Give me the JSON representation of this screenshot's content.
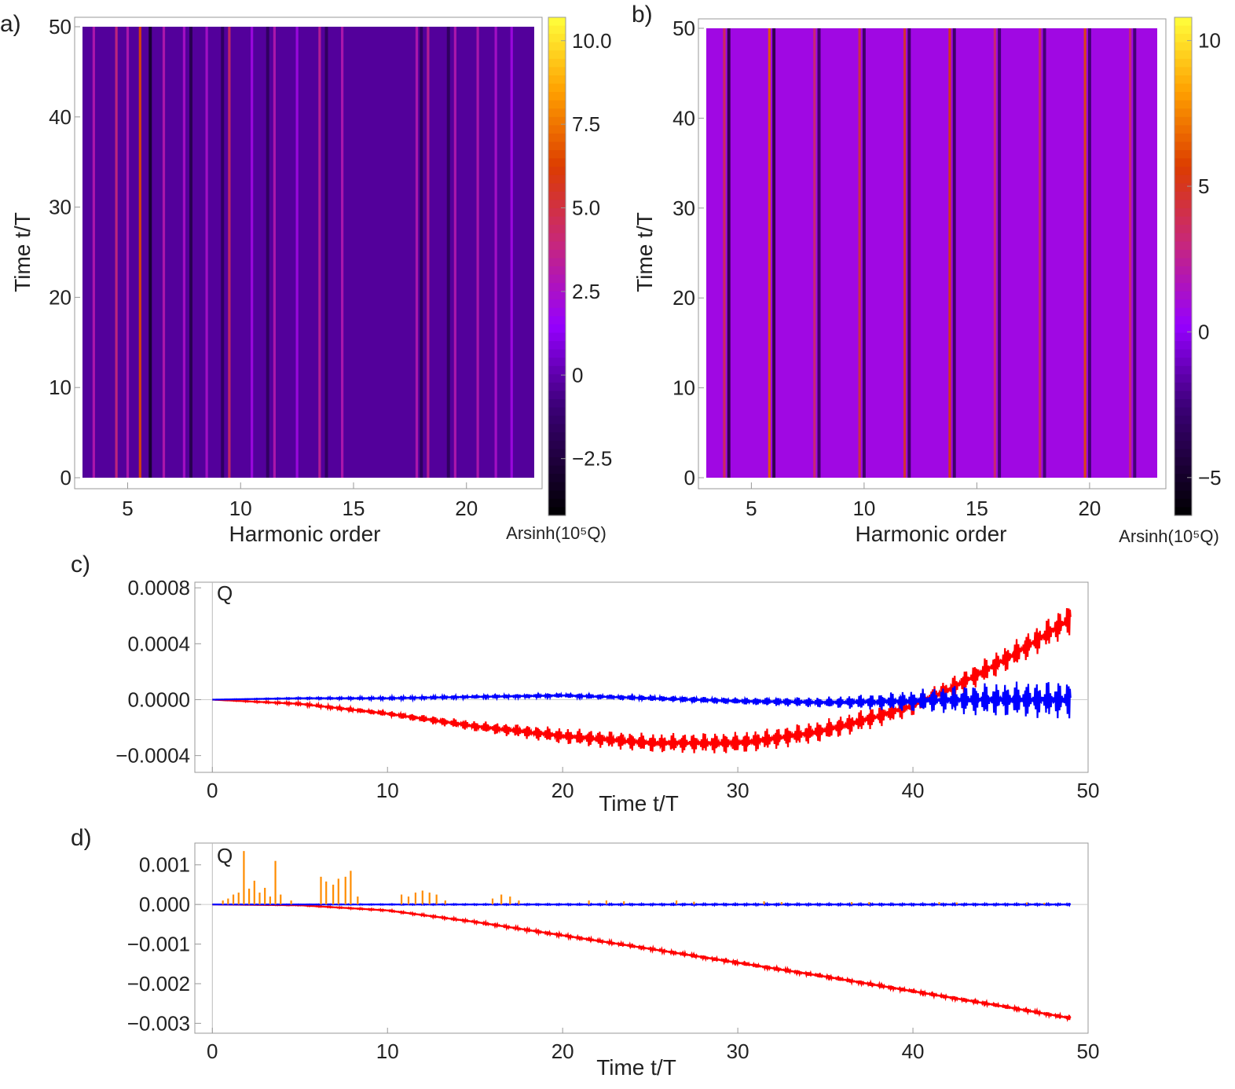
{
  "chart_data": [
    {
      "id": "a",
      "type": "heatmap",
      "panel_label": "a)",
      "xlabel": "Harmonic order",
      "ylabel": "Time  t/T",
      "x_range": [
        3,
        23
      ],
      "y_range": [
        0,
        50
      ],
      "x_ticks": [
        5,
        10,
        15,
        20
      ],
      "y_ticks": [
        0,
        10,
        20,
        30,
        40,
        50
      ],
      "colorbar_label": "Arsinh(10⁵Q)",
      "colorbar_range": [
        -4.2,
        10.7
      ],
      "colorbar_ticks": [
        -2.5,
        0,
        2.5,
        5.0,
        7.5,
        10.0
      ],
      "colorbar_tick_labels": [
        "−2.5",
        "0",
        "2.5",
        "5.0",
        "7.5",
        "10.0"
      ],
      "background_value": -0.3,
      "bright_lines_harmonic": [
        3.5,
        4.5,
        5.0,
        5.55,
        6.6,
        7.5,
        8.5,
        9.5,
        10.5,
        11.5,
        12.5,
        13.5,
        14.5,
        17.8,
        18.3,
        19.5,
        20.5,
        21.3,
        22.0
      ],
      "bright_lines_value": [
        3.0,
        4.0,
        3.0,
        6.5,
        3.0,
        2.5,
        2.5,
        4.5,
        2.0,
        3.0,
        2.0,
        3.5,
        3.0,
        3.0,
        3.5,
        3.0,
        3.0,
        2.5,
        2.0
      ],
      "dark_lines_harmonic": [
        6.0,
        7.8,
        9.2,
        11.2,
        13.8,
        18.0,
        19.2
      ],
      "dark_lines_value": [
        -3.5,
        -2.5,
        -2.0,
        -2.0,
        -2.0,
        -2.0,
        -2.0
      ]
    },
    {
      "id": "b",
      "type": "heatmap",
      "panel_label": "b)",
      "xlabel": "Harmonic order",
      "ylabel": "Time  t/T",
      "x_range": [
        3,
        23
      ],
      "y_range": [
        0,
        50
      ],
      "x_ticks": [
        5,
        10,
        15,
        20
      ],
      "y_ticks": [
        0,
        10,
        20,
        30,
        40,
        50
      ],
      "colorbar_label": "Arsinh(10⁵Q)",
      "colorbar_range": [
        -6.3,
        10.8
      ],
      "colorbar_ticks": [
        -5,
        0,
        5,
        10
      ],
      "colorbar_tick_labels": [
        "−5",
        "0",
        "5",
        "10"
      ],
      "background_value": 0.8,
      "bright_lines_harmonic": [
        3.8,
        5.8,
        7.8,
        9.8,
        11.8,
        13.8,
        15.8,
        17.8,
        19.8,
        21.8
      ],
      "bright_lines_value": [
        4.0,
        6.5,
        3.5,
        4.5,
        5.0,
        5.5,
        3.5,
        4.0,
        6.0,
        3.5
      ],
      "dark_lines_harmonic": [
        4.0,
        6.0,
        8.0,
        10.0,
        12.0,
        14.0,
        16.0,
        18.0,
        20.0,
        22.0
      ],
      "dark_lines_value": [
        -5.0,
        -5.0,
        -4.0,
        -4.0,
        -4.0,
        -4.0,
        -3.5,
        -3.5,
        -3.5,
        -3.5
      ]
    },
    {
      "id": "c",
      "type": "line",
      "panel_label": "c)",
      "xlabel": "Time  t/T",
      "ylabel": "Q",
      "xlim": [
        -1,
        50
      ],
      "ylim": [
        -0.00052,
        0.00084
      ],
      "x_ticks": [
        0,
        10,
        20,
        30,
        40,
        50
      ],
      "y_ticks": [
        -0.0004,
        0.0,
        0.0004,
        0.0008
      ],
      "y_tick_labels": [
        "−0.0004",
        "0.0000",
        "0.0004",
        "0.0008"
      ],
      "series": [
        {
          "name": "red",
          "color": "#ff0000",
          "x": [
            0,
            5,
            10,
            15,
            20,
            25,
            30,
            32,
            35,
            38,
            40,
            42,
            44,
            46,
            48,
            49
          ],
          "mean": [
            0,
            -3e-05,
            -0.0001,
            -0.00019,
            -0.00026,
            -0.00031,
            -0.00031,
            -0.00028,
            -0.00022,
            -0.00012,
            -4e-05,
            7e-05,
            0.0002,
            0.00034,
            0.0005,
            0.00058
          ],
          "amp": [
            0,
            1e-05,
            2e-05,
            4e-05,
            6e-05,
            7e-05,
            8e-05,
            8e-05,
            8e-05,
            8e-05,
            8e-05,
            8e-05,
            9e-05,
            0.0001,
            0.00011,
            0.00012
          ]
        },
        {
          "name": "blue",
          "color": "#0000ff",
          "x": [
            0,
            5,
            10,
            15,
            20,
            25,
            30,
            35,
            38,
            40,
            42,
            44,
            46,
            48,
            49
          ],
          "mean": [
            0,
            1e-05,
            1e-05,
            2e-05,
            3e-05,
            1e-05,
            -1e-05,
            -2e-05,
            -1.5e-05,
            -1e-05,
            0,
            0,
            0,
            0,
            0
          ],
          "amp": [
            0,
            5e-06,
            1e-05,
            1.3e-05,
            1.6e-05,
            2e-05,
            2.5e-05,
            4e-05,
            6e-05,
            8e-05,
            0.0001,
            0.00012,
            0.00013,
            0.00014,
            0.00014
          ]
        }
      ]
    },
    {
      "id": "d",
      "type": "line",
      "panel_label": "d)",
      "xlabel": "Time  t/T",
      "ylabel": "Q",
      "xlim": [
        -1,
        50
      ],
      "ylim": [
        -0.00325,
        0.00155
      ],
      "x_ticks": [
        0,
        10,
        20,
        30,
        40,
        50
      ],
      "y_ticks": [
        -0.003,
        -0.002,
        -0.001,
        0.0,
        0.001
      ],
      "y_tick_labels": [
        "−0.003",
        "−0.002",
        "−0.001",
        "0.000",
        "0.001"
      ],
      "series": [
        {
          "name": "red",
          "color": "#ff0000",
          "x": [
            0,
            5,
            10,
            15,
            20,
            25,
            30,
            35,
            40,
            45,
            49
          ],
          "mean": [
            0,
            -2e-05,
            -0.00015,
            -0.00044,
            -0.00078,
            -0.00112,
            -0.00147,
            -0.00182,
            -0.00219,
            -0.00256,
            -0.00287
          ],
          "amp": [
            0,
            1e-05,
            2e-05,
            3e-05,
            4e-05,
            4e-05,
            5e-05,
            5e-05,
            5e-05,
            5e-05,
            5e-05
          ]
        },
        {
          "name": "blue",
          "color": "#0000ff",
          "x": [
            0,
            10,
            20,
            30,
            40,
            49
          ],
          "mean": [
            0,
            0,
            0,
            0,
            0,
            0
          ],
          "amp": [
            0,
            1e-05,
            1.5e-05,
            2e-05,
            2e-05,
            2e-05
          ]
        },
        {
          "name": "orange",
          "color": "#ff8c00",
          "style": "spikes",
          "x": [
            0.6,
            0.9,
            1.2,
            1.5,
            1.8,
            2.1,
            2.4,
            2.7,
            3.0,
            3.3,
            3.6,
            3.9,
            4.5,
            6.2,
            6.5,
            6.9,
            7.2,
            7.6,
            7.9,
            8.3,
            10.8,
            11.2,
            11.6,
            12.0,
            12.4,
            12.8,
            13.3,
            16.0,
            16.5,
            17.0,
            17.5,
            21.5,
            22.5,
            23.5,
            26.5,
            27.5,
            31.5,
            32.5,
            36.5,
            37.5,
            41.5,
            42.5,
            46.5,
            47.5
          ],
          "y": [
            0.0001,
            0.00015,
            0.00025,
            0.0003,
            0.00135,
            0.0004,
            0.0006,
            0.0003,
            0.00042,
            0.0002,
            0.0011,
            0.00025,
            0.0001,
            0.0007,
            0.00058,
            0.0005,
            0.00065,
            0.0007,
            0.00085,
            0.0002,
            0.00025,
            0.0002,
            0.0003,
            0.00035,
            0.0003,
            0.00025,
            0.0001,
            0.00015,
            0.00025,
            0.0002,
            0.0001,
            0.0001,
            0.0001,
            8e-05,
            0.0001,
            7e-05,
            8e-05,
            6e-05,
            6e-05,
            6e-05,
            6e-05,
            5e-05,
            5e-05,
            4e-05
          ]
        }
      ]
    }
  ]
}
